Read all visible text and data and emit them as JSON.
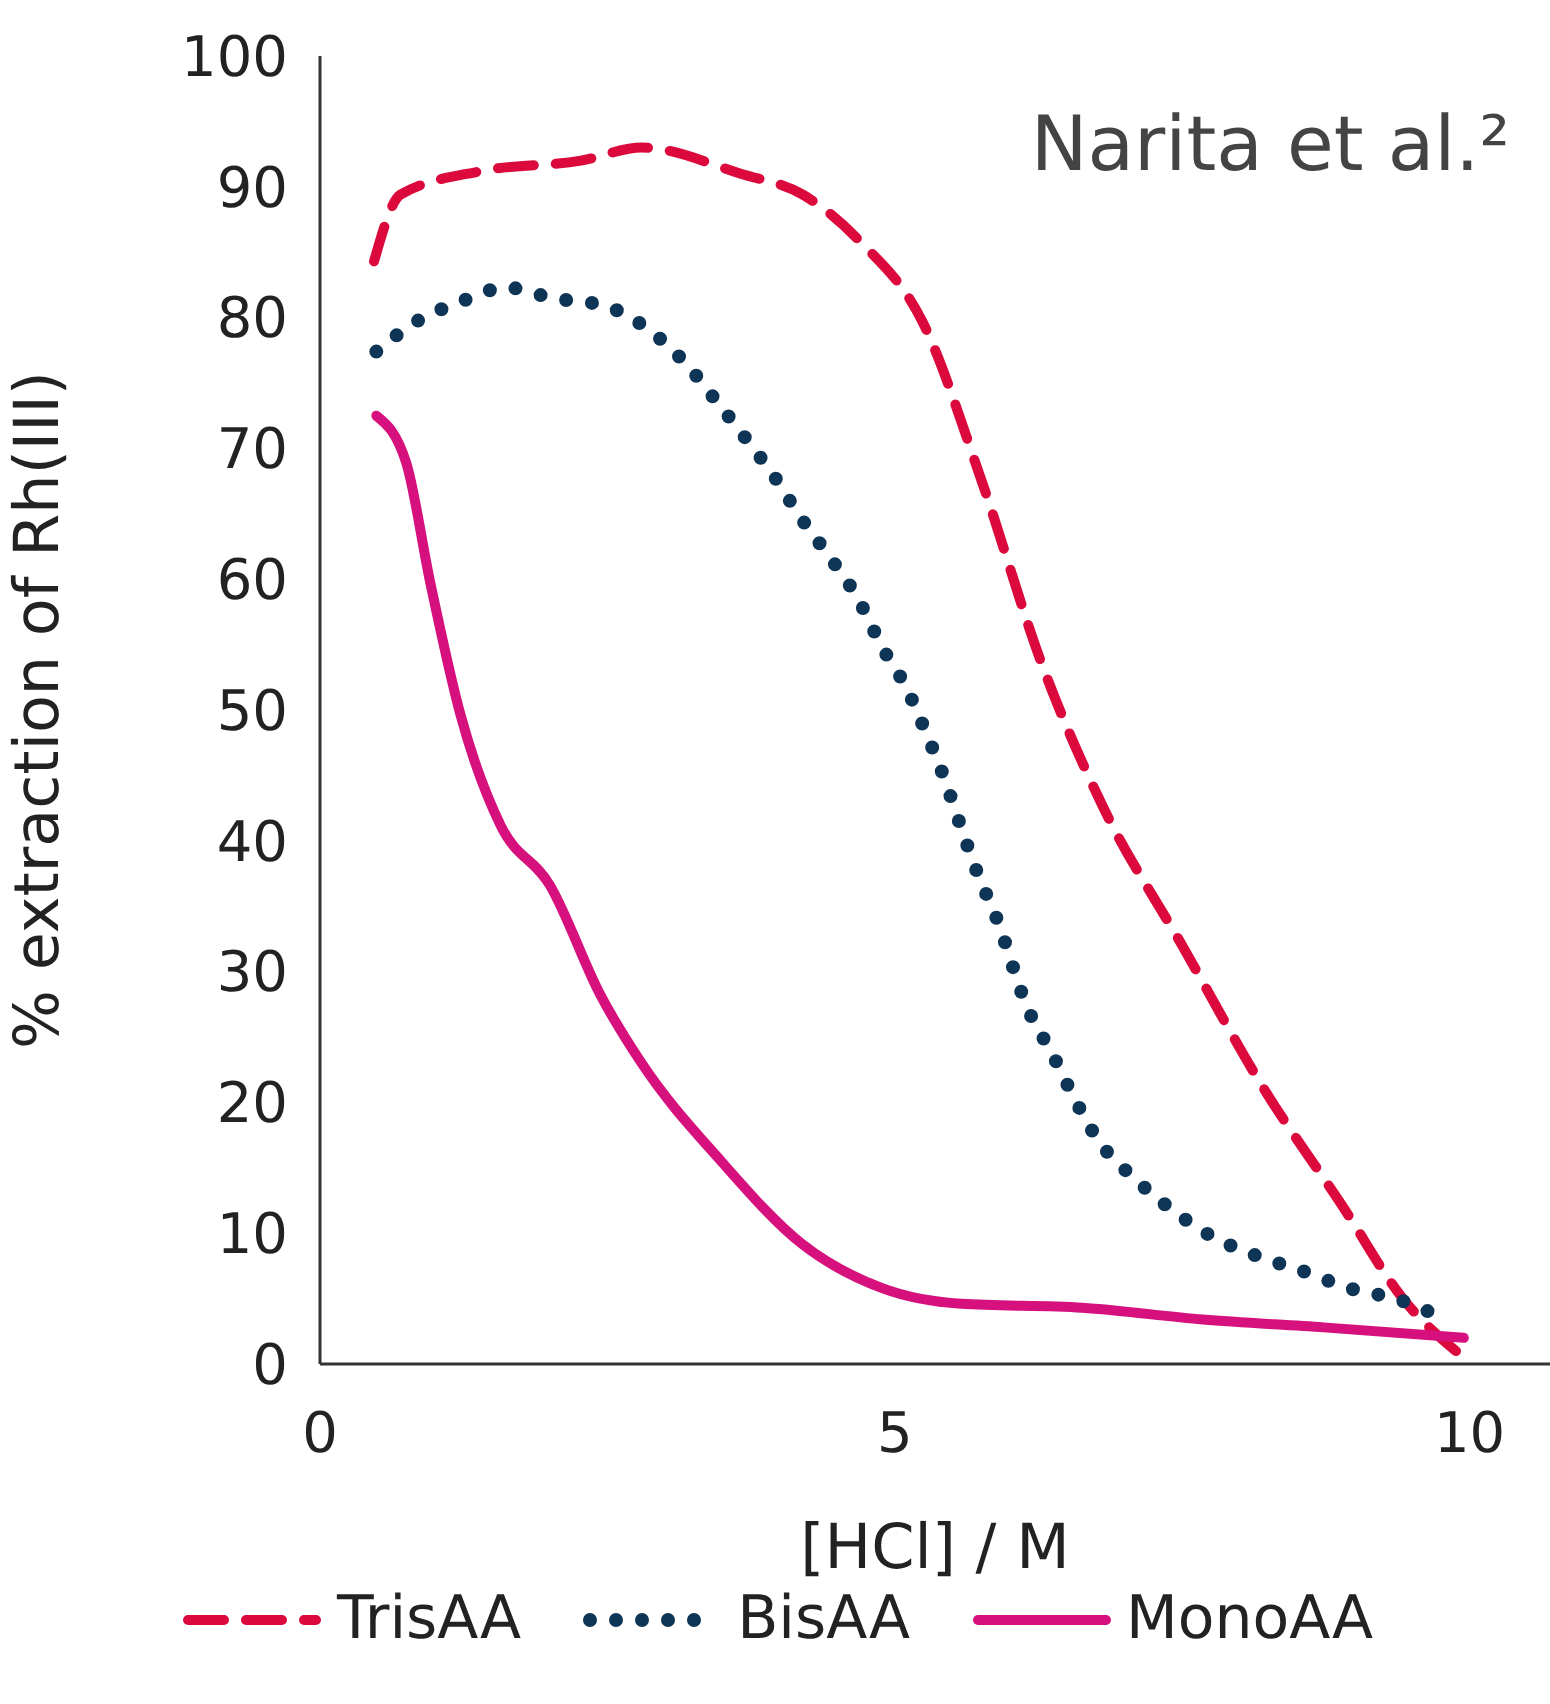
{
  "chart_data": {
    "type": "line",
    "xlabel": "[HCl] / M",
    "ylabel": "% extraction of Rh(III)",
    "annotations": [
      "Narita et al.²"
    ],
    "xlim": [
      0,
      10.7
    ],
    "xticks": [
      0,
      5,
      10
    ],
    "ylim": [
      0,
      100
    ],
    "yticks": [
      0,
      10,
      20,
      30,
      40,
      50,
      60,
      70,
      80,
      90,
      100
    ],
    "grid": false,
    "legend": "bottom",
    "marker": "none",
    "series": [
      {
        "name": "TrisAA",
        "color": "#dc0a3c",
        "line_style": "dashed",
        "x": [
          0.47,
          0.7,
          1.4,
          2.27,
          2.8,
          3.66,
          4.2,
          4.7,
          5.24,
          5.76,
          6.28,
          6.8,
          7.5,
          8.2,
          8.9,
          9.42,
          9.95
        ],
        "values": [
          84.3,
          89.4,
          91.2,
          92,
          93,
          91,
          89.4,
          85.8,
          79.7,
          67.4,
          53.5,
          42.8,
          32,
          21.2,
          12,
          5,
          0.5
        ]
      },
      {
        "name": "BisAA",
        "color": "#0e3456",
        "line_style": "dotted",
        "x": [
          0.49,
          0.84,
          1.22,
          1.62,
          2.02,
          2.48,
          2.84,
          3.18,
          3.44,
          3.7,
          3.94,
          4.19,
          4.45,
          4.68,
          4.89,
          5.1,
          5.27,
          5.43,
          5.57,
          5.72,
          5.88,
          6.16,
          6.37,
          6.58,
          6.77,
          7.07,
          7.38,
          7.77,
          8.17,
          8.55,
          8.95,
          9.39,
          9.77
        ],
        "values": [
          77.4,
          79.7,
          81.2,
          82.3,
          81.5,
          80.9,
          79.2,
          76.5,
          73.7,
          70.8,
          68,
          64.6,
          61.5,
          58.5,
          54.8,
          51.7,
          48.3,
          44.8,
          41.2,
          37.5,
          34.2,
          27.1,
          23.7,
          20,
          17.1,
          14.3,
          12,
          9.7,
          8.2,
          7.1,
          5.8,
          4.9,
          3.5
        ]
      },
      {
        "name": "MonoAA",
        "color": "#d6107c",
        "line_style": "solid",
        "x": [
          0.49,
          0.75,
          0.96,
          1.22,
          1.57,
          2.0,
          2.44,
          2.79,
          3.49,
          4.19,
          4.89,
          5.58,
          6.63,
          7.68,
          8.73,
          9.95
        ],
        "values": [
          72.5,
          68.9,
          59.7,
          49.7,
          41.2,
          36.6,
          28.2,
          23.1,
          15.5,
          9.2,
          5.8,
          4.6,
          4.3,
          3.4,
          2.8,
          2.0
        ]
      }
    ]
  }
}
